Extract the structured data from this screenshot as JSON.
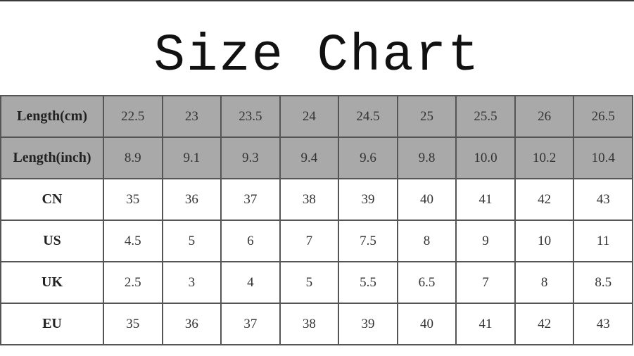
{
  "title": "Size Chart",
  "colors": {
    "header_bg": "#a9a9a9",
    "body_bg": "#ffffff",
    "border": "#555555"
  },
  "rows": [
    {
      "label": "Length(cm)",
      "shaded": true,
      "values": [
        "22.5",
        "23",
        "23.5",
        "24",
        "24.5",
        "25",
        "25.5",
        "26",
        "26.5"
      ]
    },
    {
      "label": "Length(inch)",
      "shaded": true,
      "values": [
        "8.9",
        "9.1",
        "9.3",
        "9.4",
        "9.6",
        "9.8",
        "10.0",
        "10.2",
        "10.4"
      ]
    },
    {
      "label": "CN",
      "shaded": false,
      "values": [
        "35",
        "36",
        "37",
        "38",
        "39",
        "40",
        "41",
        "42",
        "43"
      ]
    },
    {
      "label": "US",
      "shaded": false,
      "values": [
        "4.5",
        "5",
        "6",
        "7",
        "7.5",
        "8",
        "9",
        "10",
        "11"
      ]
    },
    {
      "label": "UK",
      "shaded": false,
      "values": [
        "2.5",
        "3",
        "4",
        "5",
        "5.5",
        "6.5",
        "7",
        "8",
        "8.5"
      ]
    },
    {
      "label": "EU",
      "shaded": false,
      "values": [
        "35",
        "36",
        "37",
        "38",
        "39",
        "40",
        "41",
        "42",
        "43"
      ]
    }
  ]
}
